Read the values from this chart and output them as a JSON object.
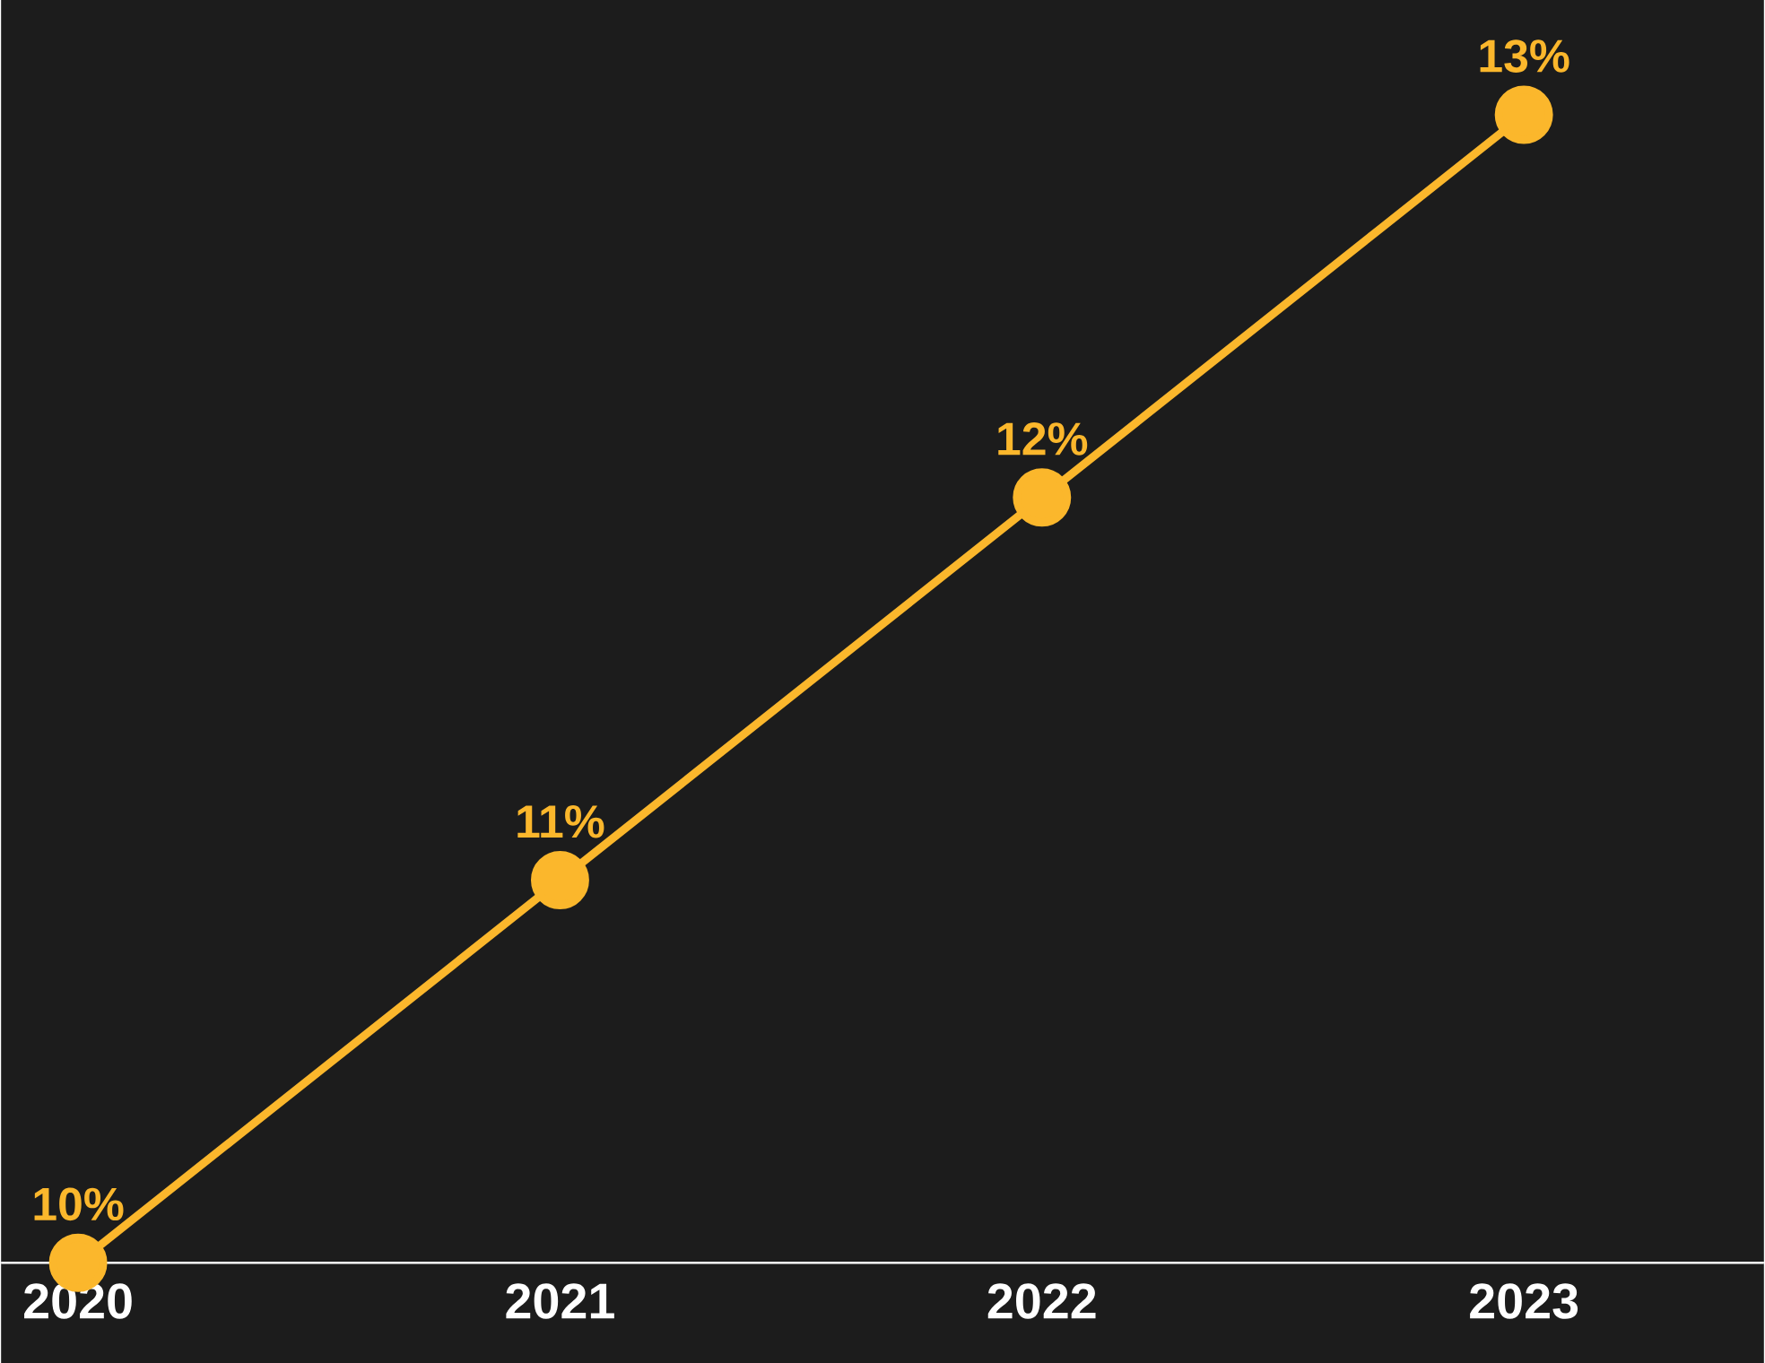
{
  "chart_data": {
    "type": "line",
    "categories": [
      "2020",
      "2021",
      "2022",
      "2023"
    ],
    "series": [
      {
        "color": "#fbb72c",
        "values": [
          10,
          11,
          12,
          13
        ],
        "value_labels": [
          "10%",
          "11%",
          "12%",
          "13%"
        ]
      }
    ],
    "tick_labels": "x",
    "marker": "circle",
    "line_style": "solid"
  }
}
